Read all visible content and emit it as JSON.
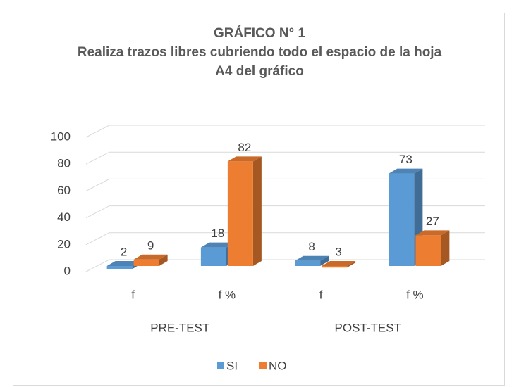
{
  "chart_data": {
    "type": "bar3d",
    "title": "GRÁFICO N° 1",
    "subtitle": "Realiza trazos libres cubriendo todo el espacio de la hoja A4 del gráfico",
    "categories": [
      "f",
      "f %",
      "f",
      "f %"
    ],
    "groups": [
      "PRE-TEST",
      "POST-TEST"
    ],
    "series": [
      {
        "name": "SI",
        "color": "#5b9bd5",
        "values": [
          2,
          18,
          8,
          73
        ]
      },
      {
        "name": "NO",
        "color": "#ed7d31",
        "values": [
          9,
          82,
          3,
          27
        ]
      }
    ],
    "ylim": [
      0,
      100
    ],
    "yticks": [
      0,
      20,
      40,
      60,
      80,
      100
    ],
    "grid": true,
    "legend": "bottom"
  }
}
